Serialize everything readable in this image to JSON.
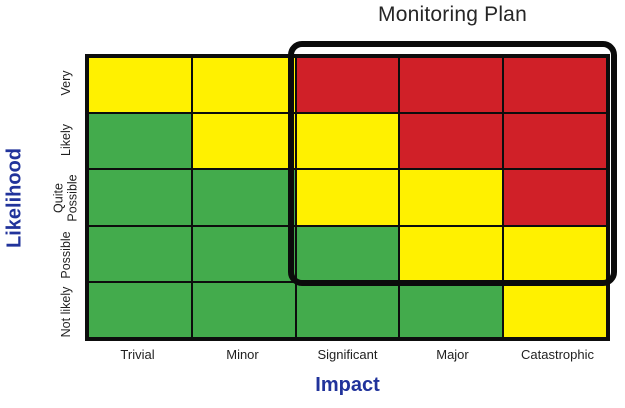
{
  "title": "Monitoring Plan",
  "axes": {
    "x_title": "Impact",
    "y_title": "Likelihood",
    "x_labels": [
      "Trivial",
      "Minor",
      "Significant",
      "Major",
      "Catastrophic"
    ],
    "y_labels_display": [
      "Very",
      "Likely",
      "Quite\nPossible",
      "Possible",
      "Not likely"
    ]
  },
  "colors": {
    "green": "#43AB4C",
    "yellow": "#FFF100",
    "red": "#D02028",
    "grid_line": "#0d0d0d",
    "annotation_box": "#0b0b0b",
    "axis_title_blue": "#21339B",
    "title_text": "#262626",
    "tick_text": "#1f1f1f"
  },
  "chart_data": {
    "type": "heatmap",
    "title": "Monitoring Plan",
    "xlabel": "Impact",
    "ylabel": "Likelihood",
    "x_categories": [
      "Trivial",
      "Minor",
      "Significant",
      "Major",
      "Catastrophic"
    ],
    "y_categories_top_to_bottom": [
      "Very",
      "Likely",
      "Quite Possible",
      "Possible",
      "Not likely"
    ],
    "cell_colors_rows_top_to_bottom": [
      [
        "yellow",
        "yellow",
        "red",
        "red",
        "red"
      ],
      [
        "green",
        "yellow",
        "yellow",
        "red",
        "red"
      ],
      [
        "green",
        "green",
        "yellow",
        "yellow",
        "red"
      ],
      [
        "green",
        "green",
        "green",
        "yellow",
        "yellow"
      ],
      [
        "green",
        "green",
        "green",
        "green",
        "yellow"
      ]
    ],
    "legend": "none",
    "grid": "on",
    "annotation_box": {
      "label": "Monitoring Plan",
      "covers_columns": [
        "Significant",
        "Major",
        "Catastrophic"
      ],
      "covers_rows": [
        "Very",
        "Likely",
        "Quite Possible",
        "Possible"
      ]
    }
  }
}
